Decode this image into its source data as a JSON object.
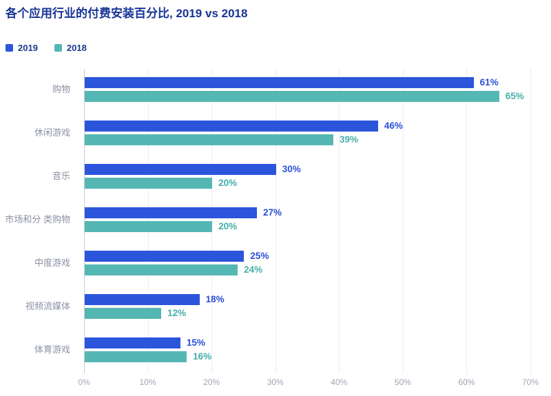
{
  "title": "各个应用行业的付费安装百分比, 2019 vs 2018",
  "colors": {
    "background": "#ffffff",
    "title_text": "#173495",
    "legend_text": "#1d3a8f",
    "category_text": "#8c90a4",
    "axis_text": "#a0a4b5",
    "gridline": "#d9dbe6",
    "axis_line": "#c9ccd8",
    "series_2019": "#2b55db",
    "series_2018": "#55b7b4"
  },
  "chart_data": {
    "type": "bar",
    "orientation": "horizontal",
    "title": "各个应用行业的付费安装百分比, 2019 vs 2018",
    "categories": [
      "购物",
      "休闲游戏",
      "音乐",
      "市场和分 类购物",
      "中度游戏",
      "视频流媒体",
      "体育游戏"
    ],
    "series": [
      {
        "name": "2019",
        "color": "#2b55db",
        "label_color": "#2b50d8",
        "values": [
          61,
          46,
          30,
          27,
          25,
          18,
          15
        ]
      },
      {
        "name": "2018",
        "color": "#55b7b4",
        "label_color": "#45b0ac",
        "values": [
          65,
          39,
          20,
          20,
          24,
          12,
          16
        ]
      }
    ],
    "value_suffix": "%",
    "xlim": [
      0,
      70
    ],
    "x_ticks": [
      "0%",
      "10%",
      "20%",
      "30%",
      "40%",
      "50%",
      "60%",
      "70%"
    ],
    "grid": "vertical-dotted",
    "legend_position": "top-left",
    "data_labels": true
  }
}
